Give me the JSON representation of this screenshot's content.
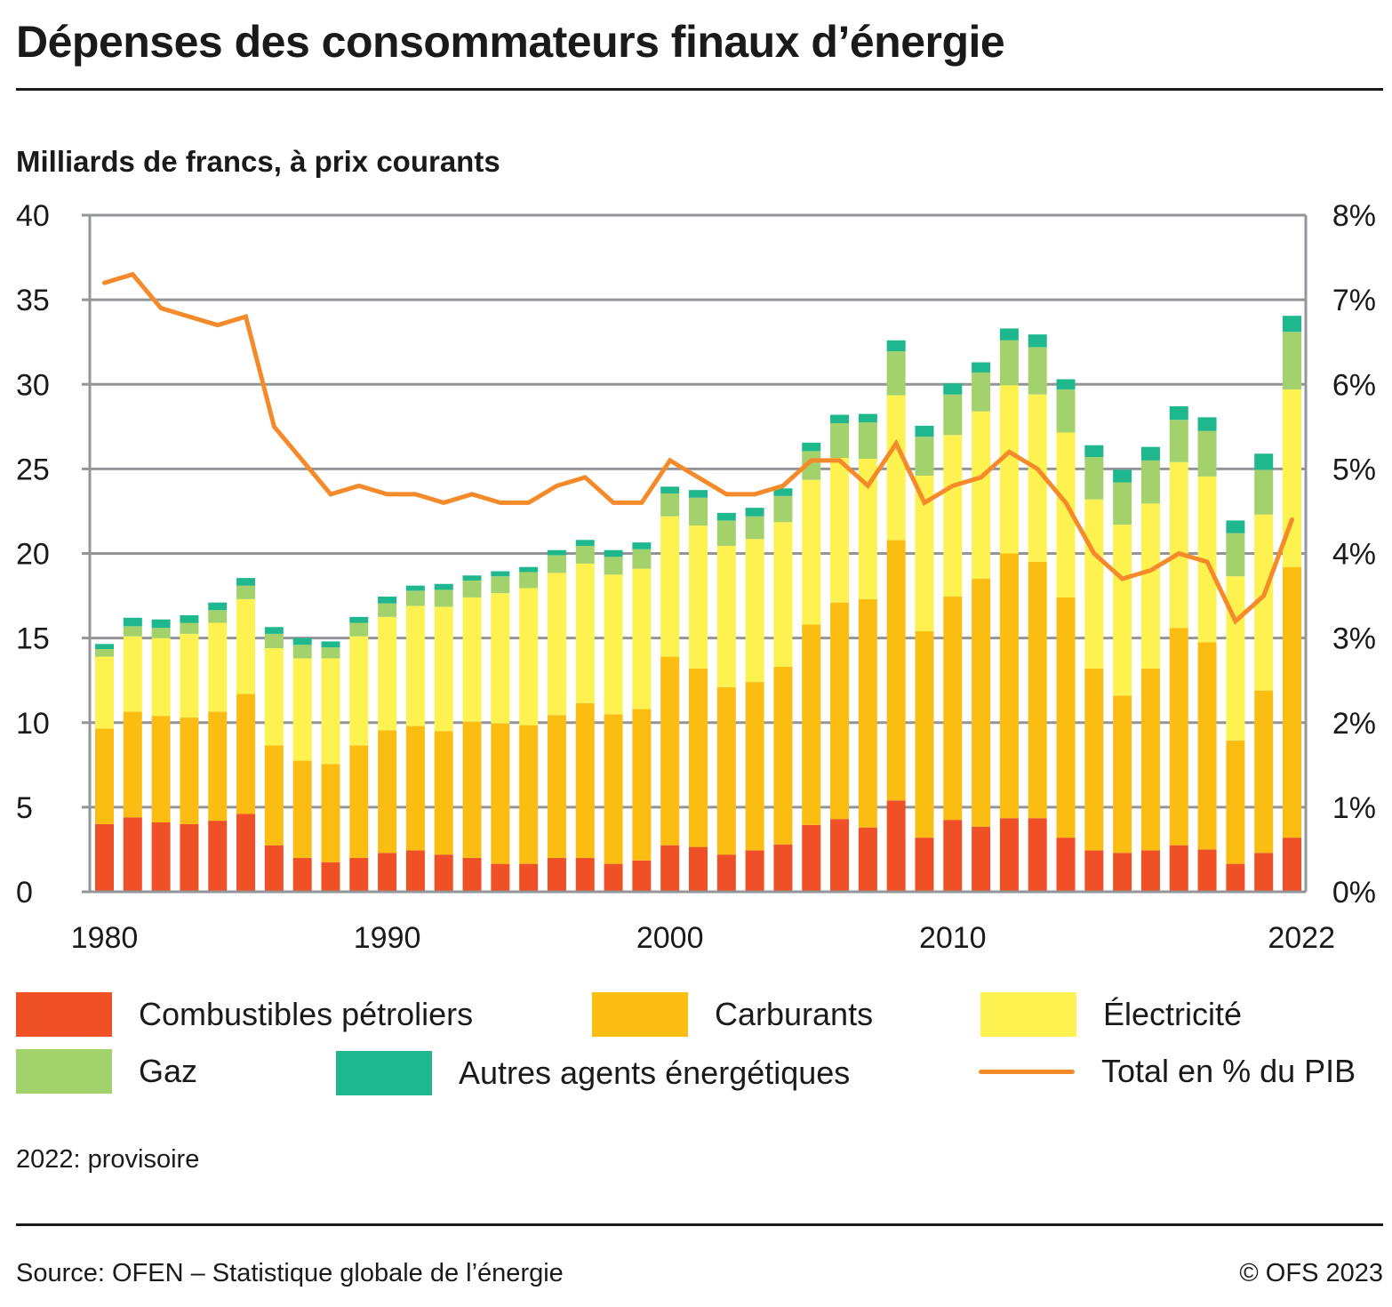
{
  "header": {
    "title": "Dépenses des consommateurs finaux d’énergie",
    "subtitle": "Milliards de francs, à prix courants"
  },
  "footer": {
    "note": "2022: provisoire",
    "source": "Source: OFEN – Statistique globale de l’énergie",
    "copyright": "© OFS 2023"
  },
  "colors": {
    "combustibles": "#ef5026",
    "carburants": "#fcbd13",
    "electricite": "#fef251",
    "gaz": "#a3d26d",
    "autres": "#1eb78e",
    "total_pct": "#f58a2b",
    "grid": "#939598"
  },
  "chart_data": {
    "type": "bar",
    "stacked": true,
    "title": "Dépenses des consommateurs finaux d’énergie",
    "subtitle": "Milliards de francs, à prix courants",
    "xlabel": "",
    "ylabel": "Milliards de francs",
    "ylim": [
      0,
      40
    ],
    "y_ticks": [
      "0",
      "5",
      "10",
      "15",
      "20",
      "25",
      "30",
      "35",
      "40"
    ],
    "y2lim": [
      0,
      8
    ],
    "y2_ticks": [
      "0%",
      "1%",
      "2%",
      "3%",
      "4%",
      "5%",
      "6%",
      "7%",
      "8%"
    ],
    "x_tick_labels": [
      {
        "year": 1980,
        "label": "1980"
      },
      {
        "year": 1990,
        "label": "1990"
      },
      {
        "year": 2000,
        "label": "2000"
      },
      {
        "year": 2010,
        "label": "2010"
      },
      {
        "year": 2022,
        "label": "2022"
      }
    ],
    "grid": true,
    "legend_position": "bottom",
    "categories": [
      1980,
      1981,
      1982,
      1983,
      1984,
      1985,
      1986,
      1987,
      1988,
      1989,
      1990,
      1991,
      1992,
      1993,
      1994,
      1995,
      1996,
      1997,
      1998,
      1999,
      2000,
      2001,
      2002,
      2003,
      2004,
      2005,
      2006,
      2007,
      2008,
      2009,
      2010,
      2011,
      2012,
      2013,
      2014,
      2015,
      2016,
      2017,
      2018,
      2019,
      2020,
      2021,
      2022
    ],
    "series": [
      {
        "key": "combustibles",
        "name": "Combustibles pétroliers",
        "type": "bar",
        "values": [
          4.0,
          4.4,
          4.1,
          4.0,
          4.2,
          4.6,
          2.75,
          2.0,
          1.75,
          2.0,
          2.3,
          2.45,
          2.2,
          2.0,
          1.65,
          1.65,
          2.0,
          2.0,
          1.65,
          1.85,
          2.75,
          2.65,
          2.2,
          2.45,
          2.8,
          3.95,
          4.3,
          3.8,
          5.4,
          3.2,
          4.25,
          3.85,
          4.35,
          4.35,
          3.2,
          2.45,
          2.3,
          2.45,
          2.75,
          2.5,
          1.65,
          2.3,
          3.2
        ]
      },
      {
        "key": "carburants",
        "name": "Carburants",
        "type": "bar",
        "values": [
          5.65,
          6.25,
          6.3,
          6.3,
          6.45,
          7.1,
          5.9,
          5.75,
          5.8,
          6.65,
          7.25,
          7.35,
          7.3,
          8.05,
          8.3,
          8.2,
          8.45,
          9.15,
          8.85,
          8.95,
          11.15,
          10.55,
          9.9,
          9.95,
          10.5,
          11.85,
          12.8,
          13.5,
          15.4,
          12.2,
          13.2,
          14.65,
          15.65,
          15.15,
          14.2,
          10.75,
          9.3,
          10.75,
          12.85,
          12.25,
          7.3,
          9.6,
          16.0
        ]
      },
      {
        "key": "electricite",
        "name": "Électricité",
        "type": "bar",
        "values": [
          4.25,
          4.45,
          4.6,
          4.95,
          5.25,
          5.6,
          5.75,
          6.05,
          6.25,
          6.45,
          6.7,
          7.1,
          7.35,
          7.35,
          7.7,
          8.1,
          8.4,
          8.25,
          8.25,
          8.3,
          8.3,
          8.45,
          8.35,
          8.45,
          8.55,
          8.55,
          8.55,
          8.3,
          8.55,
          9.2,
          9.55,
          9.9,
          9.95,
          9.9,
          9.75,
          10.0,
          10.1,
          9.75,
          9.8,
          9.8,
          9.7,
          10.4,
          10.5
        ]
      },
      {
        "key": "gaz",
        "name": "Gaz",
        "type": "bar",
        "values": [
          0.45,
          0.6,
          0.6,
          0.65,
          0.75,
          0.8,
          0.85,
          0.8,
          0.65,
          0.8,
          0.8,
          0.9,
          1.0,
          1.0,
          1.0,
          0.95,
          1.05,
          1.05,
          1.05,
          1.15,
          1.35,
          1.65,
          1.5,
          1.35,
          1.55,
          1.7,
          2.05,
          2.15,
          2.6,
          2.3,
          2.4,
          2.3,
          2.65,
          2.8,
          2.55,
          2.5,
          2.5,
          2.55,
          2.5,
          2.7,
          2.55,
          2.65,
          3.4
        ]
      },
      {
        "key": "autres",
        "name": "Autres agents énergétiques",
        "type": "bar",
        "values": [
          0.3,
          0.5,
          0.5,
          0.45,
          0.45,
          0.45,
          0.4,
          0.4,
          0.35,
          0.35,
          0.4,
          0.3,
          0.35,
          0.3,
          0.3,
          0.3,
          0.3,
          0.35,
          0.4,
          0.4,
          0.4,
          0.45,
          0.45,
          0.5,
          0.45,
          0.5,
          0.5,
          0.5,
          0.65,
          0.65,
          0.65,
          0.6,
          0.7,
          0.75,
          0.6,
          0.7,
          0.75,
          0.8,
          0.8,
          0.8,
          0.75,
          0.95,
          0.95
        ]
      },
      {
        "key": "total_pct",
        "name": "Total en % du PIB",
        "type": "line",
        "axis": "right",
        "unit": "%",
        "values": [
          7.2,
          7.3,
          6.9,
          6.8,
          6.7,
          6.8,
          5.5,
          5.1,
          4.7,
          4.8,
          4.7,
          4.7,
          4.6,
          4.7,
          4.6,
          4.6,
          4.8,
          4.9,
          4.6,
          4.6,
          5.1,
          4.9,
          4.7,
          4.7,
          4.8,
          5.1,
          5.1,
          4.8,
          5.3,
          4.6,
          4.8,
          4.9,
          5.2,
          5.0,
          4.6,
          4.0,
          3.7,
          3.8,
          4.0,
          3.9,
          3.2,
          3.5,
          4.4
        ]
      }
    ]
  },
  "legend": {
    "items": [
      {
        "key": "combustibles",
        "label": "Combustibles pétroliers",
        "kind": "swatch"
      },
      {
        "key": "carburants",
        "label": "Carburants",
        "kind": "swatch"
      },
      {
        "key": "electricite",
        "label": "Électricité",
        "kind": "swatch"
      },
      {
        "key": "gaz",
        "label": "Gaz",
        "kind": "swatch"
      },
      {
        "key": "autres",
        "label": "Autres agents énergétiques",
        "kind": "swatch"
      },
      {
        "key": "total_pct",
        "label": "Total en % du PIB",
        "kind": "line"
      }
    ]
  }
}
